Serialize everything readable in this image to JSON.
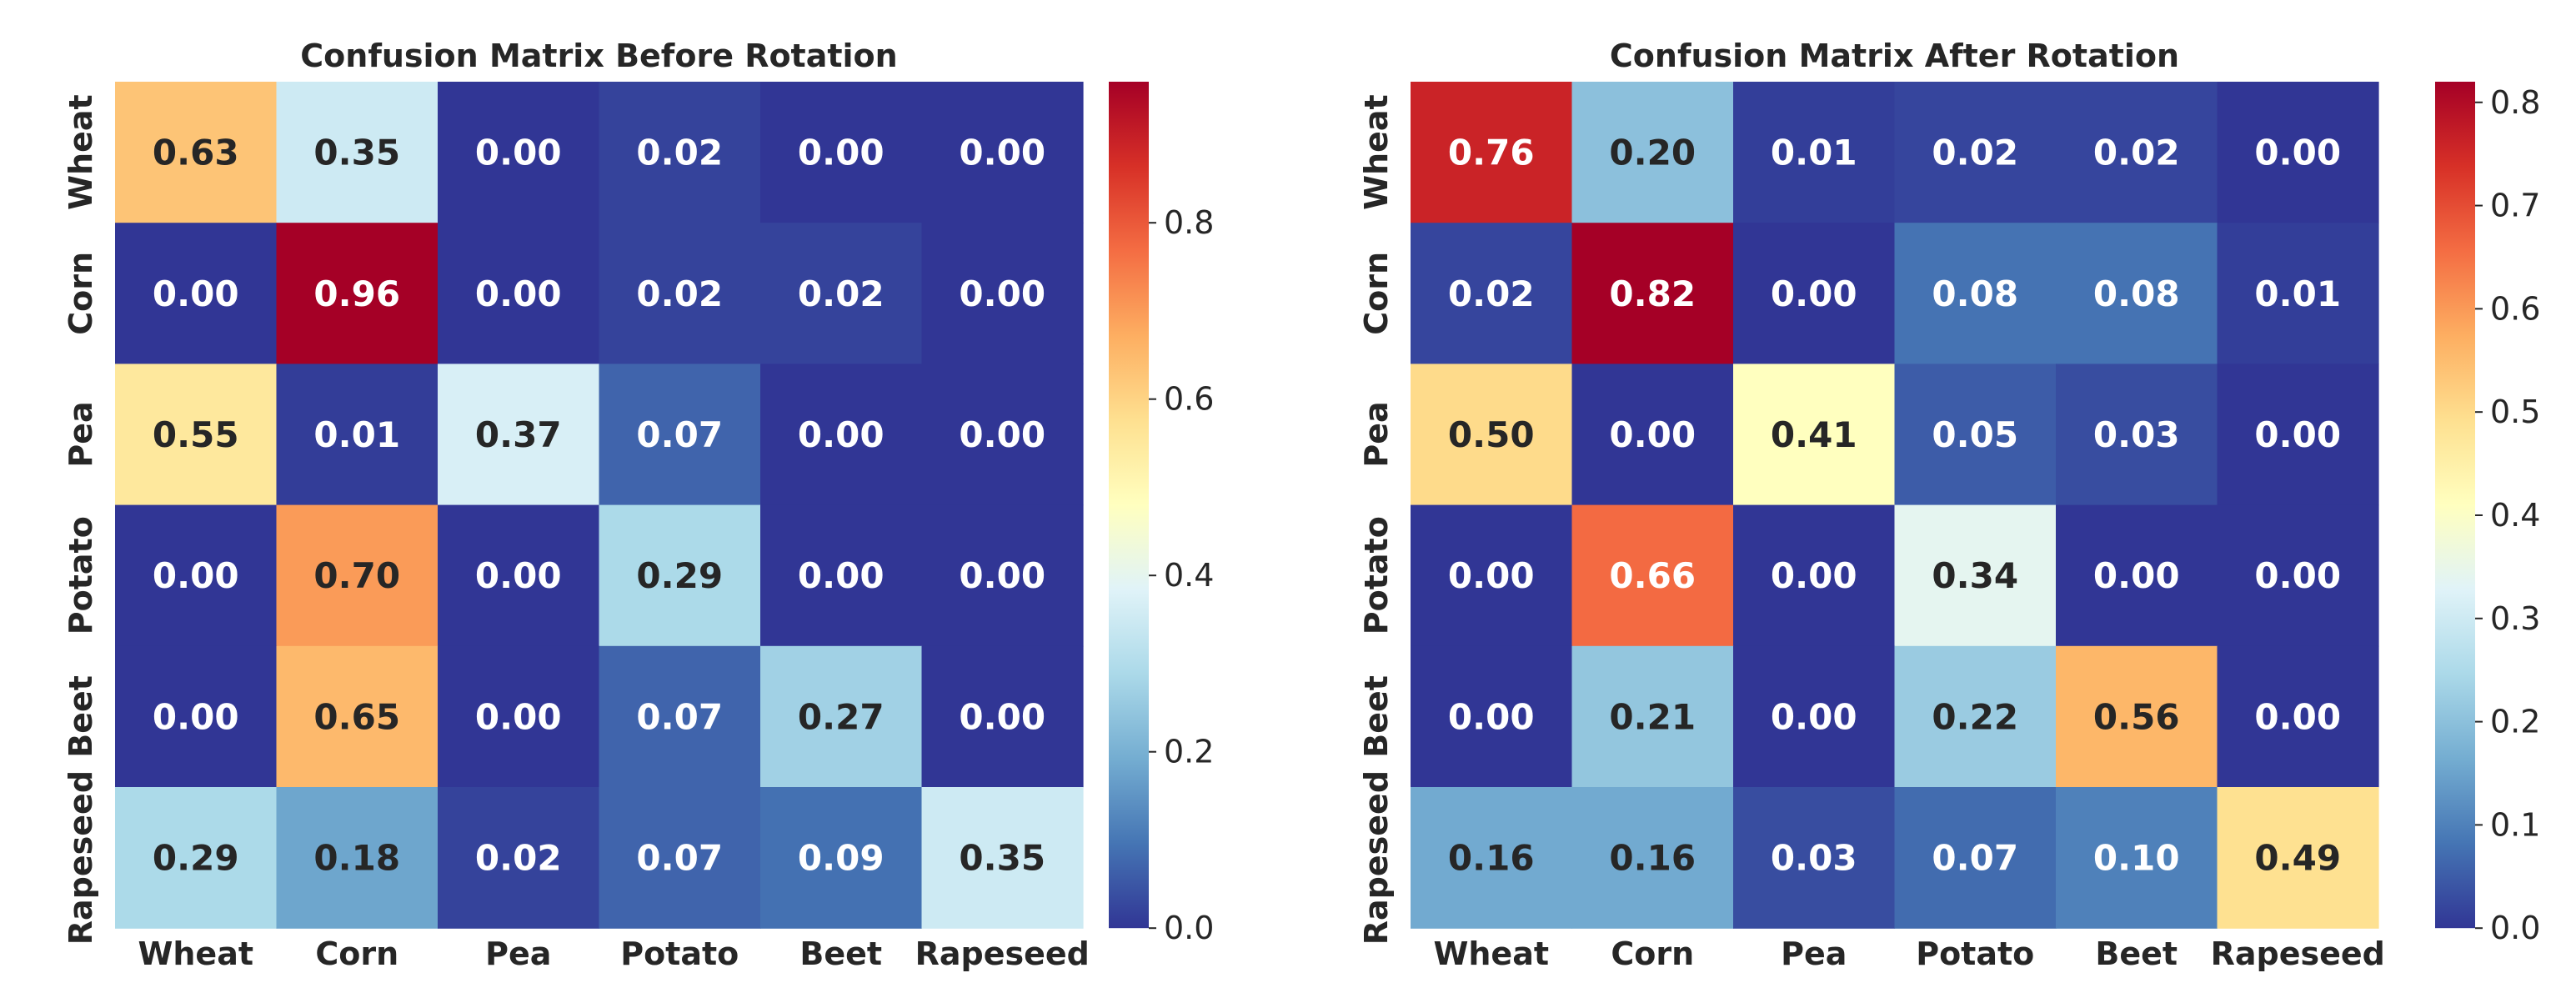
{
  "chart_data": [
    {
      "type": "heatmap",
      "title": "Confusion Matrix Before Rotation",
      "row_labels": [
        "Wheat",
        "Corn",
        "Pea",
        "Potato",
        "Beet",
        "Rapeseed"
      ],
      "col_labels": [
        "Wheat",
        "Corn",
        "Pea",
        "Potato",
        "Beet",
        "Rapeseed"
      ],
      "values": [
        [
          0.63,
          0.35,
          0.0,
          0.02,
          0.0,
          0.0
        ],
        [
          0.0,
          0.96,
          0.0,
          0.02,
          0.02,
          0.0
        ],
        [
          0.55,
          0.01,
          0.37,
          0.07,
          0.0,
          0.0
        ],
        [
          0.0,
          0.7,
          0.0,
          0.29,
          0.0,
          0.0
        ],
        [
          0.0,
          0.65,
          0.0,
          0.07,
          0.27,
          0.0
        ],
        [
          0.29,
          0.18,
          0.02,
          0.07,
          0.09,
          0.35
        ]
      ],
      "labels": [
        [
          "0.63",
          "0.35",
          "0.00",
          "0.02",
          "0.00",
          "0.00"
        ],
        [
          "0.00",
          "0.96",
          "0.00",
          "0.02",
          "0.02",
          "0.00"
        ],
        [
          "0.55",
          "0.01",
          "0.37",
          "0.07",
          "0.00",
          "0.00"
        ],
        [
          "0.00",
          "0.70",
          "0.00",
          "0.29",
          "0.00",
          "0.00"
        ],
        [
          "0.00",
          "0.65",
          "0.00",
          "0.07",
          "0.27",
          "0.00"
        ],
        [
          "0.29",
          "0.18",
          "0.02",
          "0.07",
          "0.09",
          "0.35"
        ]
      ],
      "colormap": "RdYlBu_r",
      "vmin": 0.0,
      "vmax": 0.96,
      "colorbar_ticks": [
        0.0,
        0.2,
        0.4,
        0.6,
        0.8
      ],
      "colorbar_tick_labels": [
        "0.0",
        "0.2",
        "0.4",
        "0.6",
        "0.8"
      ]
    },
    {
      "type": "heatmap",
      "title": "Confusion Matrix After Rotation",
      "row_labels": [
        "Wheat",
        "Corn",
        "Pea",
        "Potato",
        "Beet",
        "Rapeseed"
      ],
      "col_labels": [
        "Wheat",
        "Corn",
        "Pea",
        "Potato",
        "Beet",
        "Rapeseed"
      ],
      "values": [
        [
          0.76,
          0.2,
          0.01,
          0.02,
          0.02,
          0.0
        ],
        [
          0.02,
          0.82,
          0.0,
          0.08,
          0.08,
          0.01
        ],
        [
          0.5,
          0.0,
          0.41,
          0.05,
          0.03,
          0.0
        ],
        [
          0.0,
          0.66,
          0.0,
          0.34,
          0.0,
          0.0
        ],
        [
          0.0,
          0.21,
          0.0,
          0.22,
          0.56,
          0.0
        ],
        [
          0.16,
          0.16,
          0.03,
          0.07,
          0.1,
          0.49
        ]
      ],
      "labels": [
        [
          "0.76",
          "0.20",
          "0.01",
          "0.02",
          "0.02",
          "0.00"
        ],
        [
          "0.02",
          "0.82",
          "0.00",
          "0.08",
          "0.08",
          "0.01"
        ],
        [
          "0.50",
          "0.00",
          "0.41",
          "0.05",
          "0.03",
          "0.00"
        ],
        [
          "0.00",
          "0.66",
          "0.00",
          "0.34",
          "0.00",
          "0.00"
        ],
        [
          "0.00",
          "0.21",
          "0.00",
          "0.22",
          "0.56",
          "0.00"
        ],
        [
          "0.16",
          "0.16",
          "0.03",
          "0.07",
          "0.10",
          "0.49"
        ]
      ],
      "colormap": "RdYlBu_r",
      "vmin": 0.0,
      "vmax": 0.82,
      "colorbar_ticks": [
        0.0,
        0.1,
        0.2,
        0.3,
        0.4,
        0.5,
        0.6,
        0.7,
        0.8
      ],
      "colorbar_tick_labels": [
        "0.0",
        "0.1",
        "0.2",
        "0.3",
        "0.4",
        "0.5",
        "0.6",
        "0.7",
        "0.8"
      ]
    }
  ]
}
